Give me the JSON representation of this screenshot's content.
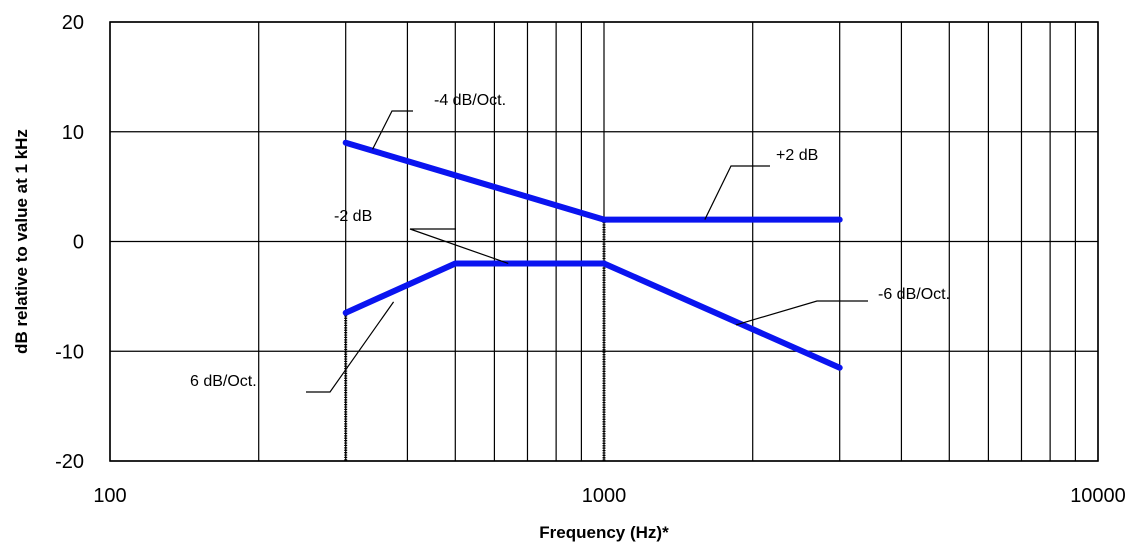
{
  "chart_data": {
    "type": "line",
    "xscale": "log",
    "xlim": [
      100,
      10000
    ],
    "ylim": [
      -20,
      20
    ],
    "xlabel": "Frequency (Hz)*",
    "ylabel": "dB relative to value at 1 kHz",
    "xticks": [
      100,
      1000,
      10000
    ],
    "yticks": [
      20,
      10,
      0,
      -10,
      -20
    ],
    "grid": true,
    "series": [
      {
        "color": "#0a14f0",
        "x": [
          300,
          1000,
          3000
        ],
        "y": [
          9,
          2,
          2
        ]
      },
      {
        "color": "#0a14f0",
        "x": [
          300,
          500,
          1000,
          3000
        ],
        "y": [
          -6.5,
          -2,
          -2,
          -11.5
        ]
      }
    ],
    "annotations": [
      {
        "text": "-4 dB/Oct.",
        "point": [
          340,
          8.4
        ]
      },
      {
        "text": "+2 dB",
        "point": [
          1600,
          2
        ]
      },
      {
        "text": "-2 dB",
        "point": [
          640,
          -2
        ]
      },
      {
        "text": "-6 dB/Oct.",
        "point": [
          1850,
          -7.6
        ]
      },
      {
        "text": "6 dB/Oct.",
        "point": [
          375,
          -5.5
        ]
      }
    ],
    "markers": [
      {
        "x": 300,
        "y_from": -6.5,
        "y_to": -20
      },
      {
        "x": 1000,
        "y_from": 2,
        "y_to": -20
      }
    ]
  }
}
